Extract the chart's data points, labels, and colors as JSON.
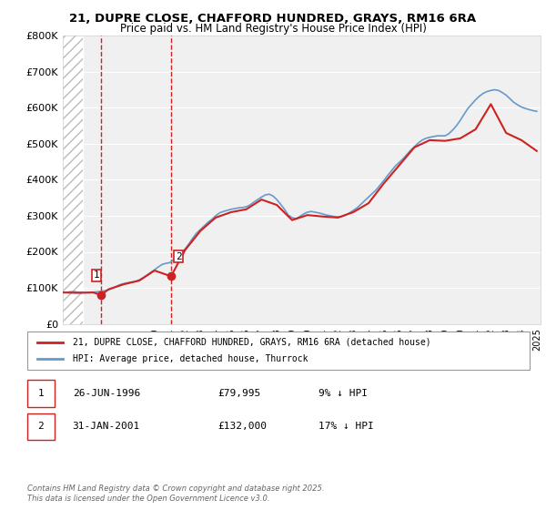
{
  "title": "21, DUPRE CLOSE, CHAFFORD HUNDRED, GRAYS, RM16 6RA",
  "subtitle": "Price paid vs. HM Land Registry's House Price Index (HPI)",
  "ylabel": "",
  "xlabel": "",
  "background_color": "#ffffff",
  "plot_bg_color": "#f0f0f0",
  "hatch_color": "#d0d0d0",
  "ylim": [
    0,
    800000
  ],
  "yticks": [
    0,
    100000,
    200000,
    300000,
    400000,
    500000,
    600000,
    700000,
    800000
  ],
  "ytick_labels": [
    "£0",
    "£100K",
    "£200K",
    "£300K",
    "£400K",
    "£500K",
    "£600K",
    "£700K",
    "£800K"
  ],
  "hpi_line_color": "#6699cc",
  "price_line_color": "#cc2222",
  "sale1": {
    "year": 1996.49,
    "price": 79995,
    "label": "1",
    "date": "26-JUN-1996",
    "pct": "9% ↓ HPI"
  },
  "sale2": {
    "year": 2001.08,
    "price": 132000,
    "label": "2",
    "date": "31-JAN-2001",
    "pct": "17% ↓ HPI"
  },
  "legend_label_red": "21, DUPRE CLOSE, CHAFFORD HUNDRED, GRAYS, RM16 6RA (detached house)",
  "legend_label_blue": "HPI: Average price, detached house, Thurrock",
  "footer": "Contains HM Land Registry data © Crown copyright and database right 2025.\nThis data is licensed under the Open Government Licence v3.0.",
  "table_rows": [
    [
      "1",
      "26-JUN-1996",
      "£79,995",
      "9% ↓ HPI"
    ],
    [
      "2",
      "31-JAN-2001",
      "£132,000",
      "17% ↓ HPI"
    ]
  ],
  "hpi_data": {
    "years": [
      1994.0,
      1994.25,
      1994.5,
      1994.75,
      1995.0,
      1995.25,
      1995.5,
      1995.75,
      1996.0,
      1996.25,
      1996.5,
      1996.75,
      1997.0,
      1997.25,
      1997.5,
      1997.75,
      1998.0,
      1998.25,
      1998.5,
      1998.75,
      1999.0,
      1999.25,
      1999.5,
      1999.75,
      2000.0,
      2000.25,
      2000.5,
      2000.75,
      2001.0,
      2001.25,
      2001.5,
      2001.75,
      2002.0,
      2002.25,
      2002.5,
      2002.75,
      2003.0,
      2003.25,
      2003.5,
      2003.75,
      2004.0,
      2004.25,
      2004.5,
      2004.75,
      2005.0,
      2005.25,
      2005.5,
      2005.75,
      2006.0,
      2006.25,
      2006.5,
      2006.75,
      2007.0,
      2007.25,
      2007.5,
      2007.75,
      2008.0,
      2008.25,
      2008.5,
      2008.75,
      2009.0,
      2009.25,
      2009.5,
      2009.75,
      2010.0,
      2010.25,
      2010.5,
      2010.75,
      2011.0,
      2011.25,
      2011.5,
      2011.75,
      2012.0,
      2012.25,
      2012.5,
      2012.75,
      2013.0,
      2013.25,
      2013.5,
      2013.75,
      2014.0,
      2014.25,
      2014.5,
      2014.75,
      2015.0,
      2015.25,
      2015.5,
      2015.75,
      2016.0,
      2016.25,
      2016.5,
      2016.75,
      2017.0,
      2017.25,
      2017.5,
      2017.75,
      2018.0,
      2018.25,
      2018.5,
      2018.75,
      2019.0,
      2019.25,
      2019.5,
      2019.75,
      2020.0,
      2020.25,
      2020.5,
      2020.75,
      2021.0,
      2021.25,
      2021.5,
      2021.75,
      2022.0,
      2022.25,
      2022.5,
      2022.75,
      2023.0,
      2023.25,
      2023.5,
      2023.75,
      2024.0,
      2024.25,
      2024.5,
      2024.75,
      2025.0
    ],
    "values": [
      87000,
      88000,
      89000,
      89500,
      88000,
      87500,
      87000,
      87500,
      88000,
      89000,
      90000,
      92000,
      95000,
      99000,
      104000,
      109000,
      112000,
      114000,
      116000,
      118000,
      122000,
      128000,
      135000,
      143000,
      150000,
      158000,
      165000,
      168000,
      170000,
      178000,
      186000,
      196000,
      208000,
      222000,
      238000,
      252000,
      262000,
      272000,
      282000,
      290000,
      300000,
      308000,
      312000,
      315000,
      318000,
      320000,
      322000,
      323000,
      325000,
      330000,
      338000,
      345000,
      352000,
      358000,
      360000,
      355000,
      345000,
      332000,
      318000,
      302000,
      295000,
      292000,
      298000,
      305000,
      310000,
      312000,
      310000,
      308000,
      305000,
      302000,
      300000,
      298000,
      297000,
      298000,
      302000,
      308000,
      315000,
      322000,
      332000,
      342000,
      352000,
      362000,
      372000,
      385000,
      398000,
      412000,
      425000,
      438000,
      448000,
      458000,
      470000,
      482000,
      492000,
      502000,
      510000,
      515000,
      518000,
      520000,
      522000,
      522000,
      522000,
      528000,
      538000,
      550000,
      565000,
      582000,
      598000,
      610000,
      622000,
      632000,
      640000,
      645000,
      648000,
      650000,
      648000,
      642000,
      635000,
      625000,
      615000,
      608000,
      602000,
      598000,
      595000,
      592000,
      590000
    ]
  },
  "price_data": {
    "years": [
      1994.0,
      1995.0,
      1996.0,
      1996.49,
      1997.0,
      1998.0,
      1999.0,
      2000.0,
      2001.08,
      2002.0,
      2003.0,
      2004.0,
      2005.0,
      2006.0,
      2007.0,
      2008.0,
      2009.0,
      2010.0,
      2011.0,
      2012.0,
      2013.0,
      2014.0,
      2015.0,
      2016.0,
      2017.0,
      2018.0,
      2019.0,
      2020.0,
      2021.0,
      2022.0,
      2023.0,
      2024.0,
      2024.5,
      2025.0
    ],
    "values": [
      87000,
      86000,
      87000,
      79995,
      96000,
      110000,
      120000,
      148000,
      132000,
      205000,
      258000,
      295000,
      310000,
      318000,
      345000,
      330000,
      288000,
      302000,
      298000,
      295000,
      310000,
      335000,
      390000,
      440000,
      490000,
      510000,
      508000,
      515000,
      540000,
      610000,
      530000,
      510000,
      495000,
      480000
    ]
  }
}
